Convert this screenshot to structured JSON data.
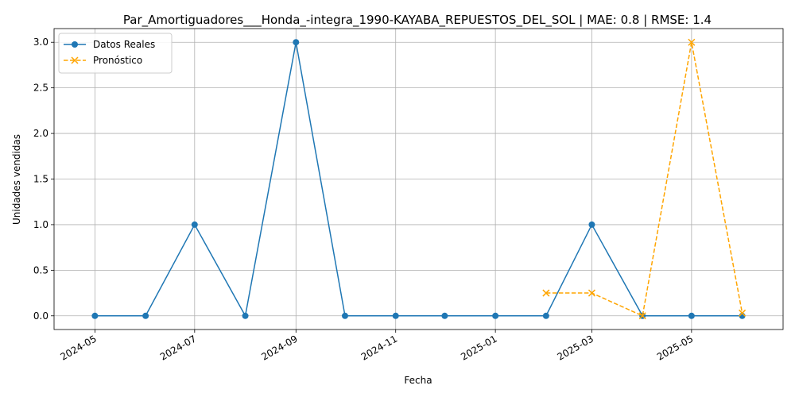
{
  "chart_data": {
    "type": "line",
    "title": "Par_Amortiguadores___Honda_-integra_1990-KAYABA_REPUESTOS_DEL_SOL | MAE: 0.8 | RMSE: 1.4",
    "xlabel": "Fecha",
    "ylabel": "Unidades vendidas",
    "ylim": [
      -0.15,
      3.15
    ],
    "xlim": [
      "2024-04-06",
      "2025-06-26"
    ],
    "grid": true,
    "legend": "top-left",
    "x_ticks": [
      "2024-05",
      "2024-07",
      "2024-09",
      "2024-11",
      "2025-01",
      "2025-03",
      "2025-05"
    ],
    "y_ticks": [
      "0.0",
      "0.5",
      "1.0",
      "1.5",
      "2.0",
      "2.5",
      "3.0"
    ],
    "series": [
      {
        "name": "Datos Reales",
        "style": "solid",
        "marker": "circle",
        "color": "#1f77b4",
        "x": [
          "2024-05-01",
          "2024-06-01",
          "2024-07-01",
          "2024-08-01",
          "2024-09-01",
          "2024-10-01",
          "2024-11-01",
          "2024-12-01",
          "2025-01-01",
          "2025-02-01",
          "2025-03-01",
          "2025-04-01",
          "2025-05-01",
          "2025-06-01"
        ],
        "values": [
          0,
          0,
          1,
          0,
          3,
          0,
          0,
          0,
          0,
          0,
          1,
          0,
          0,
          0
        ]
      },
      {
        "name": "Pronóstico",
        "style": "dashed",
        "marker": "x",
        "color": "#ffa500",
        "x": [
          "2025-02-01",
          "2025-03-01",
          "2025-04-01",
          "2025-05-01",
          "2025-06-01"
        ],
        "values": [
          0.25,
          0.25,
          0,
          3,
          0.03
        ]
      }
    ]
  }
}
